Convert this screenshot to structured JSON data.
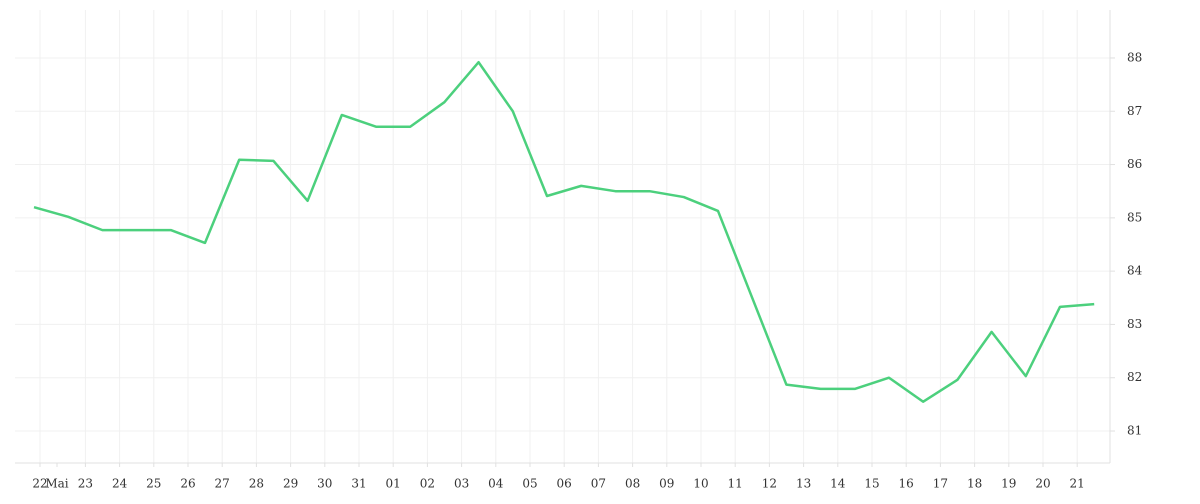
{
  "chart_data": {
    "type": "line",
    "categories": [
      "22",
      "Mai",
      "23",
      "24",
      "25",
      "26",
      "27",
      "28",
      "29",
      "30",
      "31",
      "01",
      "02",
      "03",
      "04",
      "05",
      "06",
      "07",
      "08",
      "09",
      "10",
      "11",
      "12",
      "13",
      "14",
      "15",
      "16",
      "17",
      "18",
      "19",
      "20",
      "21"
    ],
    "series": [
      {
        "color": "#4cd07d",
        "values": [
          85.2,
          85.02,
          84.77,
          84.77,
          84.77,
          84.53,
          86.09,
          86.07,
          85.32,
          86.93,
          86.71,
          86.71,
          87.17,
          87.92,
          87.0,
          85.41,
          85.6,
          85.5,
          85.5,
          85.39,
          85.13,
          83.5,
          81.87,
          81.79,
          81.79,
          82.0,
          81.55,
          81.96,
          82.86,
          82.03,
          83.33,
          83.38
        ]
      }
    ],
    "ylim": [
      80.4,
      88.9
    ],
    "yticks": [
      81,
      82,
      83,
      84,
      85,
      86,
      87,
      88
    ],
    "grid": true
  }
}
